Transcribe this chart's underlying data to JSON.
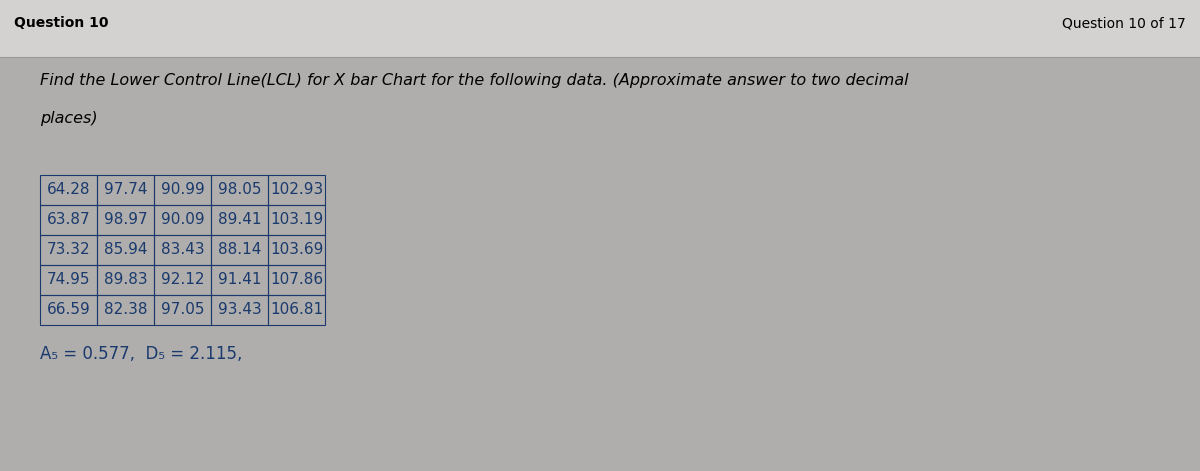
{
  "title": "Question 10",
  "question_counter": "Question 10 of 17",
  "question_text_line1": "Find the Lower Control Line(LCL) for X bar Chart for the following data. (Approximate answer to two decimal",
  "question_text_line2": "places)",
  "table_data": [
    [
      "64.28",
      "97.74",
      "90.99",
      "98.05",
      "102.93"
    ],
    [
      "63.87",
      "98.97",
      "90.09",
      "89.41",
      "103.19"
    ],
    [
      "73.32",
      "85.94",
      "83.43",
      "88.14",
      "103.69"
    ],
    [
      "74.95",
      "89.83",
      "92.12",
      "91.41",
      "107.86"
    ],
    [
      "66.59",
      "82.38",
      "97.05",
      "93.43",
      "106.81"
    ]
  ],
  "formula_text": "A₅ = 0.577,  D₅ = 2.115,",
  "bg_color": "#b0aeac",
  "table_text_color": "#1a3a6e",
  "table_border_color": "#1a3a6e",
  "title_color": "#000000",
  "question_text_color": "#000000",
  "formula_color": "#1a3a6e",
  "top_strip_color": "#d4d2d0",
  "divider_color": "#999999",
  "title_fontsize": 10,
  "question_fontsize": 11.5,
  "table_fontsize": 11,
  "formula_fontsize": 12
}
